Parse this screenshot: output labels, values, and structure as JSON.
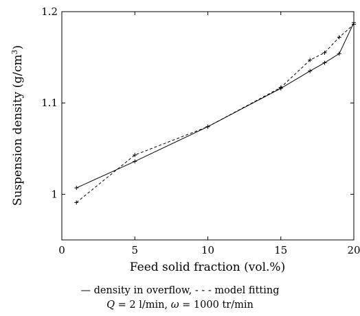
{
  "chart_data": {
    "type": "line",
    "xlabel": "Feed solid fraction (vol.%)",
    "ylabel_main": "Suspension density (g/cm",
    "ylabel_sup": "3",
    "ylabel_close": ")",
    "xlim": [
      0,
      20
    ],
    "ylim": [
      0.95,
      1.2
    ],
    "xticks": [
      0,
      5,
      10,
      15,
      20
    ],
    "yticks": [
      1.0,
      1.1,
      1.2
    ],
    "xtick_labels": [
      "0",
      "5",
      "10",
      "15",
      "20"
    ],
    "ytick_labels": [
      "1",
      "1.1",
      "1.2"
    ],
    "grid": false,
    "series": [
      {
        "name": "density in overflow",
        "style": "solid",
        "color": "#000000",
        "marker": "+",
        "x": [
          1,
          5,
          10,
          15,
          17,
          18,
          19,
          20
        ],
        "y": [
          1.007,
          1.036,
          1.074,
          1.116,
          1.135,
          1.144,
          1.154,
          1.188
        ]
      },
      {
        "name": "model fitting",
        "style": "dashed",
        "color": "#000000",
        "marker": "+",
        "x": [
          1,
          5,
          10,
          15,
          17,
          18,
          19,
          20
        ],
        "y": [
          0.991,
          1.043,
          1.074,
          1.117,
          1.147,
          1.155,
          1.172,
          1.186
        ]
      }
    ]
  },
  "caption": {
    "legend_solid_symbol": "—",
    "legend_solid_text": "density in overflow,",
    "legend_dashed_symbol": "- - -",
    "legend_dashed_text": "model fitting",
    "q_symbol": "Q",
    "q_text": "= 2 l/min,",
    "omega_symbol": "ω",
    "omega_text": "= 1000 tr/min"
  }
}
